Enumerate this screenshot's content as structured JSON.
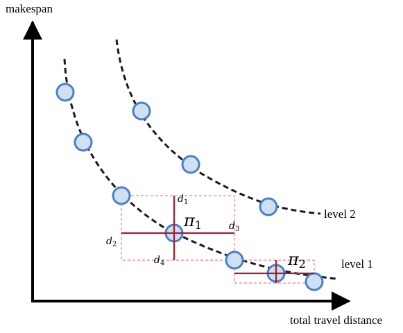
{
  "axes": {
    "y_label": "makespan",
    "x_label": "total travel distance"
  },
  "levels": [
    {
      "label": "level 2"
    },
    {
      "label": "level 1"
    }
  ],
  "distance_labels": {
    "d1": "d",
    "d1_sub": "1",
    "d2": "d",
    "d2_sub": "2",
    "d3": "d",
    "d3_sub": "3",
    "d4": "d",
    "d4_sub": "4"
  },
  "solutions": {
    "pi1": "π",
    "pi1_sub": "1",
    "pi2": "π",
    "pi2_sub": "2"
  },
  "colors": {
    "axis": "#000000",
    "curve": "#1a1a1a",
    "point_fill": "#cfe0f3",
    "point_stroke": "#4a7fc9",
    "cross": "#a51c2a",
    "dashed_box": "#f08080"
  }
}
